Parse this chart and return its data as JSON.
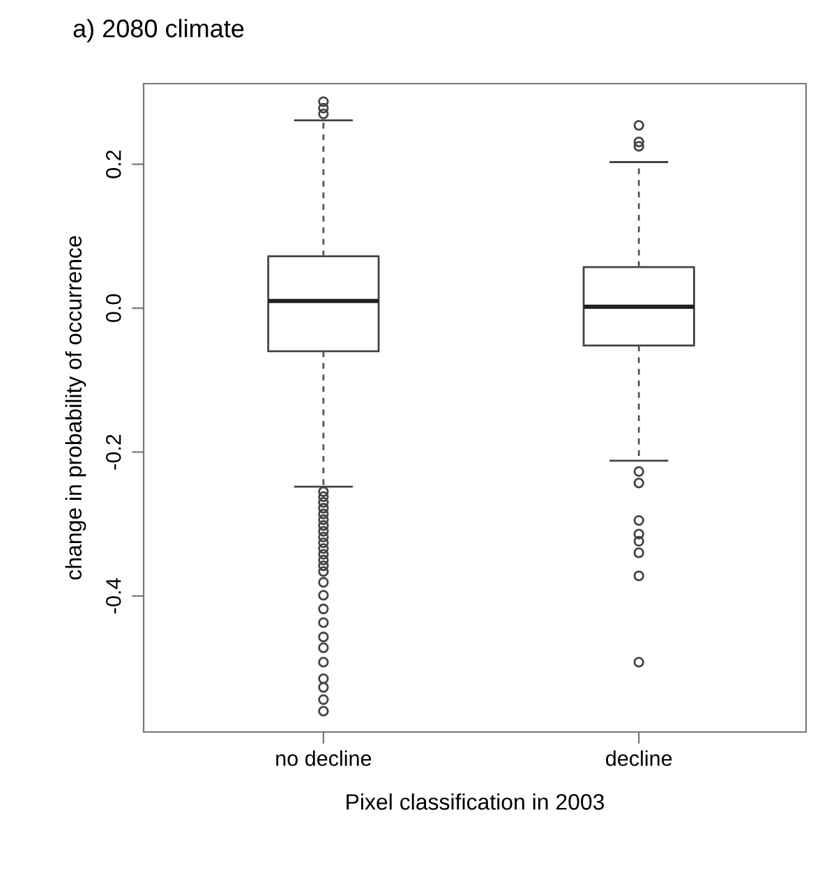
{
  "chart_data": {
    "type": "box",
    "title": "a) 2080 climate",
    "xlabel": "Pixel classification in 2003",
    "ylabel": "change in probability of occurrence",
    "categories": [
      "no decline",
      "decline"
    ],
    "boxes": [
      {
        "low": -0.248,
        "q1": -0.06,
        "median": 0.01,
        "q3": 0.072,
        "high": 0.261,
        "outliers": [
          0.287,
          0.278,
          0.27,
          -0.255,
          -0.262,
          -0.27,
          -0.278,
          -0.286,
          -0.294,
          -0.302,
          -0.31,
          -0.318,
          -0.326,
          -0.334,
          -0.342,
          -0.35,
          -0.358,
          -0.366,
          -0.381,
          -0.399,
          -0.418,
          -0.437,
          -0.457,
          -0.472,
          -0.492,
          -0.515,
          -0.527,
          -0.544,
          -0.56
        ]
      },
      {
        "low": -0.212,
        "q1": -0.052,
        "median": 0.002,
        "q3": 0.057,
        "high": 0.203,
        "outliers": [
          0.254,
          0.231,
          0.225,
          -0.227,
          -0.243,
          -0.295,
          -0.314,
          -0.324,
          -0.34,
          -0.372,
          -0.492
        ]
      }
    ],
    "ylim": [
      -0.589,
      0.312
    ],
    "yticks": [
      {
        "value": -0.4,
        "label": "-0.4"
      },
      {
        "value": -0.2,
        "label": "-0.2"
      },
      {
        "value": 0.0,
        "label": "0.0"
      },
      {
        "value": 0.2,
        "label": "0.2"
      }
    ],
    "grid": false
  }
}
